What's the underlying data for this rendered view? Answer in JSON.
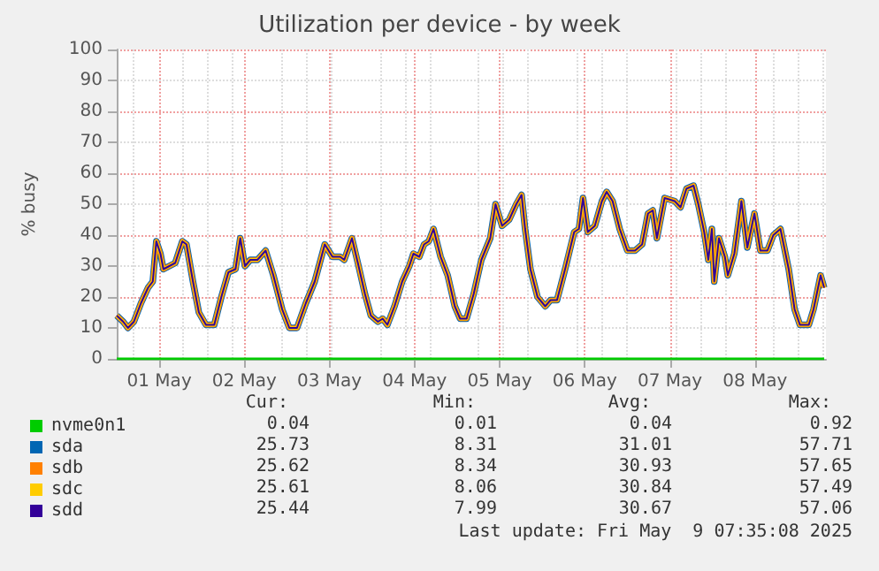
{
  "chart_data": {
    "type": "line",
    "title": "Utilization per device - by week",
    "ylabel": "% busy",
    "x": [
      "2025-05-01T00:00",
      "2025-05-01T01:50",
      "2025-05-01T03:10",
      "2025-05-01T04:50",
      "2025-05-01T06:50",
      "2025-05-01T08:50",
      "2025-05-01T10:10",
      "2025-05-01T11:10",
      "2025-05-01T12:20",
      "2025-05-01T13:10",
      "2025-05-01T14:50",
      "2025-05-01T16:30",
      "2025-05-01T18:30",
      "2025-05-01T19:40",
      "2025-05-01T21:30",
      "2025-05-01T23:10",
      "2025-05-02T01:10",
      "2025-05-02T03:30",
      "2025-05-02T05:30",
      "2025-05-02T07:30",
      "2025-05-02T09:30",
      "2025-05-02T10:50",
      "2025-05-02T12:10",
      "2025-05-02T13:40",
      "2025-05-02T15:40",
      "2025-05-02T18:00",
      "2025-05-02T20:10",
      "2025-05-02T22:40",
      "2025-05-03T00:40",
      "2025-05-03T02:50",
      "2025-05-03T05:20",
      "2025-05-03T07:50",
      "2025-05-03T10:40",
      "2025-05-03T12:50",
      "2025-05-03T15:00",
      "2025-05-03T16:10",
      "2025-05-03T18:20",
      "2025-05-03T20:00",
      "2025-05-03T22:00",
      "2025-05-03T23:40",
      "2025-05-04T01:40",
      "2025-05-04T03:00",
      "2025-05-04T04:20",
      "2025-05-04T06:20",
      "2025-05-04T08:30",
      "2025-05-04T10:30",
      "2025-05-04T11:40",
      "2025-05-04T13:20",
      "2025-05-04T14:40",
      "2025-05-04T16:00",
      "2025-05-04T17:20",
      "2025-05-04T19:20",
      "2025-05-04T21:20",
      "2025-05-04T23:20",
      "2025-05-05T00:50",
      "2025-05-05T02:40",
      "2025-05-05T04:40",
      "2025-05-05T06:50",
      "2025-05-05T09:20",
      "2025-05-05T10:50",
      "2025-05-05T12:40",
      "2025-05-05T14:40",
      "2025-05-05T16:40",
      "2025-05-05T18:10",
      "2025-05-05T19:10",
      "2025-05-05T20:40",
      "2025-05-05T22:40",
      "2025-05-06T00:50",
      "2025-05-06T02:20",
      "2025-05-06T04:10",
      "2025-05-06T06:40",
      "2025-05-06T09:00",
      "2025-05-06T10:20",
      "2025-05-06T11:30",
      "2025-05-06T12:50",
      "2025-05-06T14:50",
      "2025-05-06T16:50",
      "2025-05-06T18:10",
      "2025-05-06T19:50",
      "2025-05-06T21:50",
      "2025-05-07T00:00",
      "2025-05-07T02:10",
      "2025-05-07T04:10",
      "2025-05-07T05:50",
      "2025-05-07T07:10",
      "2025-05-07T08:20",
      "2025-05-07T10:30",
      "2025-05-07T13:20",
      "2025-05-07T15:00",
      "2025-05-07T16:40",
      "2025-05-07T18:40",
      "2025-05-07T20:00",
      "2025-05-07T21:40",
      "2025-05-07T22:50",
      "2025-05-07T23:50",
      "2025-05-08T00:30",
      "2025-05-08T01:50",
      "2025-05-08T03:30",
      "2025-05-08T04:20",
      "2025-05-08T06:10",
      "2025-05-08T08:10",
      "2025-05-08T09:50",
      "2025-05-08T11:50",
      "2025-05-08T13:30",
      "2025-05-08T15:30",
      "2025-05-08T17:10",
      "2025-05-08T19:10",
      "2025-05-08T21:30",
      "2025-05-08T23:10",
      "2025-05-09T00:40",
      "2025-05-09T03:10",
      "2025-05-09T04:30",
      "2025-05-09T06:30",
      "2025-05-09T07:30"
    ],
    "series": [
      {
        "name": "nvme0n1",
        "color": "#00cc00",
        "x": [
          "2025-05-01T00:00",
          "2025-05-09T07:30"
        ],
        "values": [
          0,
          0
        ]
      },
      {
        "name": "sda",
        "color": "#0066b3",
        "values": [
          14,
          12,
          10,
          12,
          18,
          23,
          25,
          38,
          34,
          29,
          30,
          31,
          38,
          37,
          25,
          15,
          11,
          11,
          20,
          28,
          29,
          39,
          30,
          32,
          32,
          35,
          27,
          16,
          10,
          10,
          18,
          25,
          37,
          33,
          33,
          32,
          39,
          31,
          21,
          14,
          12,
          13,
          11,
          17,
          25,
          30,
          34,
          33,
          37,
          38,
          42,
          33,
          27,
          17,
          13,
          13,
          21,
          32,
          39,
          50,
          43,
          45,
          50,
          53,
          42,
          29,
          20,
          17,
          19,
          19,
          30,
          41,
          42,
          52,
          41,
          43,
          51,
          54,
          51,
          42,
          35,
          35,
          37,
          47,
          48,
          39,
          52,
          51,
          49,
          55,
          56,
          50,
          41,
          32,
          42,
          25,
          39,
          33,
          27,
          34,
          51,
          36,
          47,
          35,
          35,
          40,
          42,
          29,
          16,
          11,
          11,
          16,
          27,
          23
        ]
      },
      {
        "name": "sdb",
        "color": "#ff8000",
        "values": [
          14,
          12,
          10,
          12,
          18,
          23,
          25,
          38,
          34,
          29,
          30,
          31,
          38,
          37,
          25,
          15,
          11,
          11,
          20,
          28,
          29,
          39,
          30,
          32,
          32,
          35,
          27,
          16,
          10,
          10,
          18,
          25,
          37,
          33,
          33,
          32,
          39,
          31,
          21,
          14,
          12,
          13,
          11,
          17,
          25,
          30,
          34,
          33,
          37,
          38,
          42,
          33,
          27,
          17,
          13,
          13,
          21,
          32,
          39,
          50,
          43,
          45,
          50,
          53,
          42,
          29,
          20,
          17,
          19,
          19,
          30,
          41,
          42,
          52,
          41,
          43,
          51,
          54,
          51,
          42,
          35,
          35,
          37,
          47,
          48,
          39,
          52,
          51,
          49,
          55,
          56,
          50,
          41,
          32,
          42,
          25,
          39,
          33,
          27,
          34,
          51,
          36,
          47,
          35,
          35,
          40,
          42,
          29,
          16,
          11,
          11,
          16,
          27,
          23
        ]
      },
      {
        "name": "sdc",
        "color": "#ffcc00",
        "values": [
          14,
          12,
          10,
          12,
          18,
          23,
          25,
          38,
          34,
          29,
          30,
          31,
          38,
          37,
          25,
          15,
          11,
          11,
          20,
          28,
          29,
          39,
          30,
          32,
          32,
          35,
          27,
          16,
          10,
          10,
          18,
          25,
          37,
          33,
          33,
          32,
          39,
          31,
          21,
          14,
          12,
          13,
          11,
          17,
          25,
          30,
          34,
          33,
          37,
          38,
          42,
          33,
          27,
          17,
          13,
          13,
          21,
          32,
          39,
          50,
          43,
          45,
          50,
          53,
          42,
          29,
          20,
          17,
          19,
          19,
          30,
          41,
          42,
          52,
          41,
          43,
          51,
          54,
          51,
          42,
          35,
          35,
          37,
          47,
          48,
          39,
          52,
          51,
          49,
          55,
          56,
          50,
          41,
          32,
          42,
          25,
          39,
          33,
          27,
          34,
          51,
          36,
          47,
          35,
          35,
          40,
          42,
          29,
          16,
          11,
          11,
          16,
          27,
          23
        ]
      },
      {
        "name": "sdd",
        "color": "#330099",
        "values": [
          14,
          12,
          10,
          12,
          18,
          23,
          25,
          38,
          34,
          29,
          30,
          31,
          38,
          37,
          25,
          15,
          11,
          11,
          20,
          28,
          29,
          39,
          30,
          32,
          32,
          35,
          27,
          16,
          10,
          10,
          18,
          25,
          37,
          33,
          33,
          32,
          39,
          31,
          21,
          14,
          12,
          13,
          11,
          17,
          25,
          30,
          34,
          33,
          37,
          38,
          42,
          33,
          27,
          17,
          13,
          13,
          21,
          32,
          39,
          50,
          43,
          45,
          50,
          53,
          42,
          29,
          20,
          17,
          19,
          19,
          30,
          41,
          42,
          52,
          41,
          43,
          51,
          54,
          51,
          42,
          35,
          35,
          37,
          47,
          48,
          39,
          52,
          51,
          49,
          55,
          56,
          50,
          41,
          32,
          42,
          25,
          39,
          33,
          27,
          34,
          51,
          36,
          47,
          35,
          35,
          40,
          42,
          29,
          16,
          11,
          11,
          16,
          27,
          23
        ]
      }
    ],
    "xlim": [
      "2025-05-01T00:00",
      "2025-05-09T08:00"
    ],
    "xticks": [
      {
        "value": "2025-05-01T12:00",
        "label": "01 May"
      },
      {
        "value": "2025-05-02T12:00",
        "label": "02 May"
      },
      {
        "value": "2025-05-03T12:00",
        "label": "03 May"
      },
      {
        "value": "2025-05-04T12:00",
        "label": "04 May"
      },
      {
        "value": "2025-05-05T12:00",
        "label": "05 May"
      },
      {
        "value": "2025-05-06T12:00",
        "label": "06 May"
      },
      {
        "value": "2025-05-07T12:00",
        "label": "07 May"
      },
      {
        "value": "2025-05-08T12:00",
        "label": "08 May"
      }
    ],
    "ylim": [
      0,
      100
    ],
    "yticks": [
      0,
      10,
      20,
      30,
      40,
      50,
      60,
      70,
      80,
      90,
      100
    ],
    "grid": true,
    "legend": "bottom left",
    "marker": "none",
    "line_style": "solid",
    "annotations": [
      "Cur:",
      "Min:",
      "Avg:",
      "Max:",
      "0.04",
      "0.01",
      "0.04",
      "0.92",
      "25.73",
      "8.31",
      "31.01",
      "57.71",
      "25.62",
      "8.34",
      "30.93",
      "57.65",
      "25.61",
      "8.06",
      "30.84",
      "57.49",
      "25.44",
      "7.99",
      "30.67",
      "57.06",
      "Last update: Fri May  9 07:35:08 2025"
    ]
  }
}
